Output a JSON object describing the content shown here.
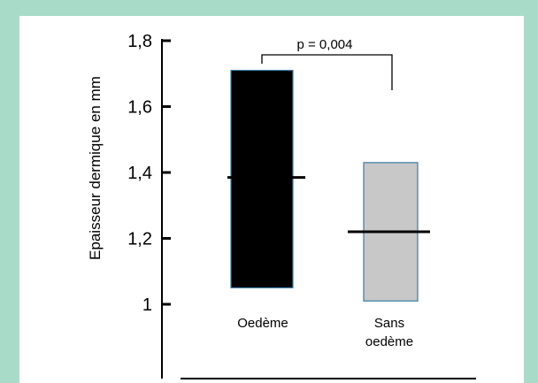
{
  "chart_data": {
    "type": "bar",
    "title": "",
    "ylabel": "Epaisseur dermique en mm",
    "xlabel": "",
    "ylim": [
      1,
      1.8
    ],
    "yticks": [
      "1",
      "1,2",
      "1,4",
      "1,6",
      "1,8"
    ],
    "ytick_values": [
      1.0,
      1.2,
      1.4,
      1.6,
      1.8
    ],
    "categories": [
      {
        "label_lines": [
          "Oedème"
        ],
        "low": 1.05,
        "high": 1.71,
        "median": 1.385,
        "color": "#000000"
      },
      {
        "label_lines": [
          "Sans",
          "oedème"
        ],
        "low": 1.01,
        "high": 1.43,
        "median": 1.22,
        "color": "#c8c8c8"
      }
    ],
    "annotation": {
      "text": "p = 0,004"
    },
    "grid": false,
    "colors": {
      "background_frame": "#a8dcc8",
      "bar_outline": "#3a7ca5",
      "median_line": "#000000"
    }
  }
}
